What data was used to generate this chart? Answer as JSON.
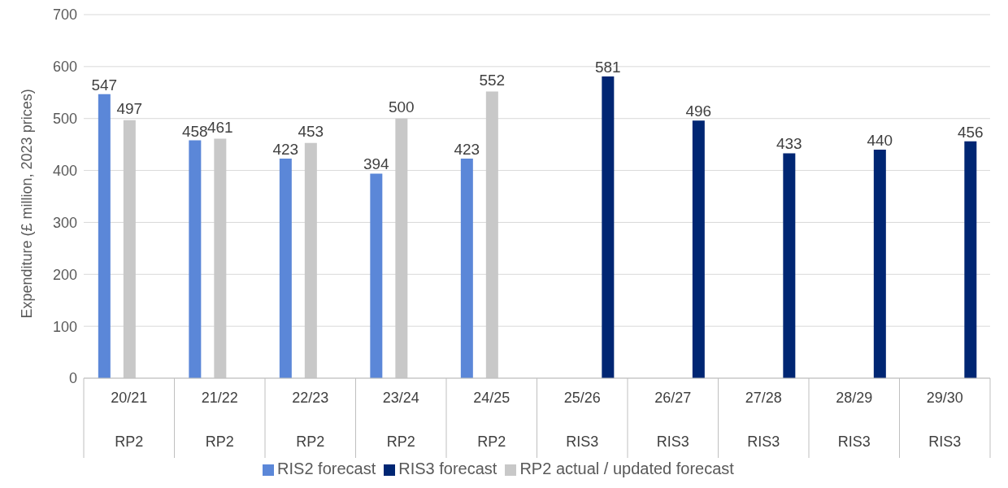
{
  "chart_data": {
    "type": "bar",
    "ylabel": "Expenditure (£ million, 2023 prices)",
    "categories": [
      "20/21",
      "21/22",
      "22/23",
      "23/24",
      "24/25",
      "25/26",
      "26/27",
      "27/28",
      "28/29",
      "29/30"
    ],
    "series": [
      {
        "name": "RIS2 forecast",
        "color": "#5b87d8",
        "values": [
          547,
          458,
          423,
          394,
          423,
          null,
          null,
          null,
          null,
          null
        ]
      },
      {
        "name": "RP2 actual / updated forecast",
        "color": "#c8c8c8",
        "values": [
          497,
          461,
          453,
          500,
          552,
          null,
          null,
          null,
          null,
          null
        ]
      },
      {
        "name": "RIS3 forecast",
        "color": "#002673",
        "values": [
          null,
          null,
          null,
          null,
          null,
          581,
          496,
          433,
          440,
          456
        ]
      }
    ],
    "annotations": [
      "RP2",
      "RP2",
      "RP2",
      "RP2",
      "RP2",
      "RIS3",
      "RIS3",
      "RIS3",
      "RIS3",
      "RIS3"
    ],
    "ylim": [
      0,
      700
    ],
    "yticks": [
      0,
      100,
      200,
      300,
      400,
      500,
      600,
      700
    ],
    "grid": "y",
    "legend": "bottom",
    "data_labels": true
  }
}
